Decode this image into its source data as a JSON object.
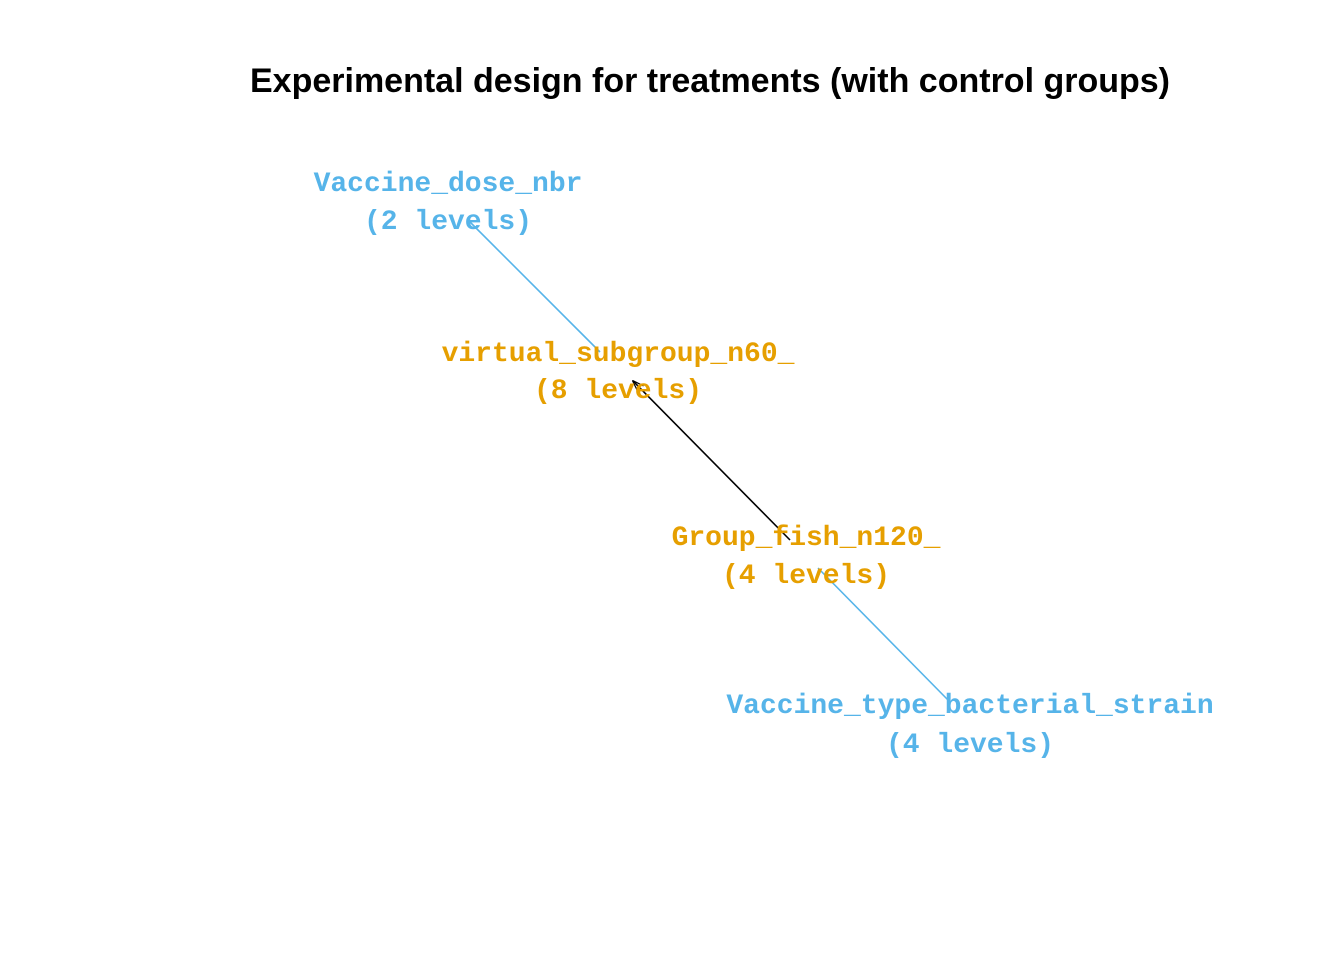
{
  "title": "Experimental design for treatments (with control groups)",
  "colors": {
    "blue": "#56B4E9",
    "orange": "#E69F00",
    "black": "#000000"
  },
  "nodes": [
    {
      "id": "vaccine_dose",
      "name": "Vaccine_dose_nbr",
      "levels": "(2 levels)",
      "color": "#56B4E9"
    },
    {
      "id": "virtual_subgroup",
      "name": "virtual_subgroup_n60_",
      "levels": "(8 levels)",
      "color": "#E69F00"
    },
    {
      "id": "group_fish",
      "name": "Group_fish_n120_",
      "levels": "(4 levels)",
      "color": "#E69F00"
    },
    {
      "id": "vaccine_type",
      "name": "Vaccine_type_bacterial_strain",
      "levels": "(4 levels)",
      "color": "#56B4E9"
    }
  ],
  "edges": [
    {
      "from": "vaccine_dose",
      "to": "virtual_subgroup",
      "color": "#56B4E9",
      "arrow": false
    },
    {
      "from": "group_fish",
      "to": "virtual_subgroup",
      "color": "#000000",
      "arrow": true
    },
    {
      "from": "vaccine_type",
      "to": "group_fish",
      "color": "#56B4E9",
      "arrow": false
    }
  ]
}
